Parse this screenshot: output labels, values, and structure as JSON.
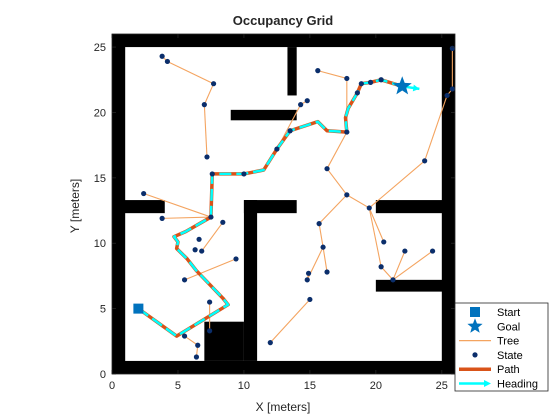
{
  "chart_data": {
    "type": "scatter",
    "title": "Occupancy Grid",
    "xlabel": "X [meters]",
    "ylabel": "Y [meters]",
    "xlim": [
      0,
      26
    ],
    "ylim": [
      0,
      26
    ],
    "xticks": [
      0,
      5,
      10,
      15,
      20,
      25
    ],
    "yticks": [
      0,
      5,
      10,
      15,
      20,
      25
    ],
    "legend_position": "bottom-right",
    "obstacles": [
      [
        0,
        0,
        1,
        26
      ],
      [
        25,
        0,
        26,
        26
      ],
      [
        0,
        0,
        26,
        1
      ],
      [
        0,
        25,
        26,
        26
      ],
      [
        13.3,
        21.3,
        14,
        25
      ],
      [
        9,
        19.4,
        14,
        20.2
      ],
      [
        0,
        12.3,
        4,
        13.3
      ],
      [
        10,
        12.3,
        14,
        13.3
      ],
      [
        10,
        1,
        11,
        13.3
      ],
      [
        7,
        1,
        10,
        4
      ],
      [
        20,
        12.3,
        26,
        13.3
      ],
      [
        20,
        6.3,
        26,
        7.2
      ]
    ],
    "tree_edges": [
      [
        [
          5.5,
          2.9
        ],
        [
          6.5,
          2.2
        ]
      ],
      [
        [
          6.5,
          2.2
        ],
        [
          6.4,
          1.3
        ]
      ],
      [
        [
          7.4,
          5.5
        ],
        [
          7.4,
          3.3
        ]
      ],
      [
        [
          5.5,
          7.2
        ],
        [
          9.4,
          8.8
        ]
      ],
      [
        [
          6.8,
          9.4
        ],
        [
          8.4,
          11.6
        ]
      ],
      [
        [
          2.4,
          13.8
        ],
        [
          7.5,
          12.0
        ]
      ],
      [
        [
          3.8,
          11.9
        ],
        [
          7.5,
          12.0
        ]
      ],
      [
        [
          7.2,
          16.6
        ],
        [
          7.0,
          20.6
        ]
      ],
      [
        [
          7.0,
          20.6
        ],
        [
          7.7,
          22.2
        ]
      ],
      [
        [
          7.7,
          22.2
        ],
        [
          4.2,
          23.9
        ]
      ],
      [
        [
          4.2,
          23.9
        ],
        [
          3.8,
          24.3
        ]
      ],
      [
        [
          15.0,
          5.7
        ],
        [
          12.0,
          2.4
        ]
      ],
      [
        [
          14.8,
          7.2
        ],
        [
          14.9,
          7.7
        ]
      ],
      [
        [
          14.8,
          7.2
        ],
        [
          16.0,
          9.7
        ]
      ],
      [
        [
          16.0,
          9.7
        ],
        [
          16.3,
          7.8
        ]
      ],
      [
        [
          16.0,
          9.7
        ],
        [
          15.7,
          11.5
        ]
      ],
      [
        [
          15.7,
          11.5
        ],
        [
          17.8,
          13.7
        ]
      ],
      [
        [
          17.8,
          13.7
        ],
        [
          19.5,
          12.7
        ]
      ],
      [
        [
          19.5,
          12.7
        ],
        [
          20.4,
          8.2
        ]
      ],
      [
        [
          20.4,
          8.2
        ],
        [
          21.3,
          7.2
        ]
      ],
      [
        [
          21.3,
          7.2
        ],
        [
          22.2,
          9.4
        ]
      ],
      [
        [
          21.3,
          7.2
        ],
        [
          24.3,
          9.4
        ]
      ],
      [
        [
          19.5,
          12.7
        ],
        [
          20.6,
          10.1
        ]
      ],
      [
        [
          19.5,
          12.7
        ],
        [
          23.7,
          16.3
        ]
      ],
      [
        [
          23.7,
          16.3
        ],
        [
          25.4,
          21.3
        ]
      ],
      [
        [
          25.4,
          21.3
        ],
        [
          25.8,
          21.8
        ]
      ],
      [
        [
          25.8,
          21.8
        ],
        [
          25.8,
          24.9
        ]
      ],
      [
        [
          17.8,
          13.7
        ],
        [
          16.3,
          15.7
        ]
      ],
      [
        [
          16.3,
          15.7
        ],
        [
          17.8,
          18.5
        ]
      ],
      [
        [
          17.8,
          18.5
        ],
        [
          17.8,
          22.6
        ]
      ],
      [
        [
          17.8,
          22.6
        ],
        [
          15.6,
          23.2
        ]
      ],
      [
        [
          14.3,
          20.6
        ],
        [
          14.8,
          20.9
        ]
      ],
      [
        [
          14.3,
          20.6
        ],
        [
          12.5,
          17.2
        ]
      ]
    ],
    "states": [
      [
        2.0,
        5.0
      ],
      [
        5.5,
        2.9
      ],
      [
        6.5,
        2.2
      ],
      [
        6.4,
        1.3
      ],
      [
        7.4,
        3.3
      ],
      [
        7.4,
        5.5
      ],
      [
        5.5,
        7.2
      ],
      [
        6.8,
        9.4
      ],
      [
        9.4,
        8.8
      ],
      [
        8.4,
        11.6
      ],
      [
        7.5,
        12.0
      ],
      [
        2.4,
        13.8
      ],
      [
        3.8,
        11.9
      ],
      [
        7.2,
        16.6
      ],
      [
        7.0,
        20.6
      ],
      [
        7.7,
        22.2
      ],
      [
        4.2,
        23.9
      ],
      [
        3.8,
        24.3
      ],
      [
        12.0,
        2.4
      ],
      [
        15.0,
        5.7
      ],
      [
        14.8,
        7.2
      ],
      [
        14.9,
        7.7
      ],
      [
        16.0,
        9.7
      ],
      [
        16.3,
        7.8
      ],
      [
        15.7,
        11.5
      ],
      [
        17.8,
        13.7
      ],
      [
        19.5,
        12.7
      ],
      [
        20.4,
        8.2
      ],
      [
        21.3,
        7.2
      ],
      [
        22.2,
        9.4
      ],
      [
        24.3,
        9.4
      ],
      [
        20.6,
        10.1
      ],
      [
        23.7,
        16.3
      ],
      [
        25.4,
        21.3
      ],
      [
        25.8,
        21.8
      ],
      [
        25.8,
        24.9
      ],
      [
        16.3,
        15.7
      ],
      [
        17.8,
        18.5
      ],
      [
        17.8,
        22.6
      ],
      [
        15.6,
        23.2
      ],
      [
        14.3,
        20.6
      ],
      [
        14.8,
        20.9
      ],
      [
        12.5,
        17.2
      ],
      [
        13.5,
        18.6
      ],
      [
        10.0,
        15.3
      ],
      [
        7.6,
        15.3
      ],
      [
        6.3,
        9.5
      ],
      [
        6.6,
        10.3
      ],
      [
        18.6,
        21.5
      ],
      [
        18.9,
        22.2
      ],
      [
        19.6,
        22.3
      ],
      [
        20.4,
        22.5
      ],
      [
        22.0,
        22.0
      ]
    ],
    "path": [
      [
        2.0,
        5.0
      ],
      [
        4.9,
        2.9
      ],
      [
        8.8,
        5.3
      ],
      [
        8.4,
        5.8
      ],
      [
        6.4,
        7.9
      ],
      [
        5.7,
        8.8
      ],
      [
        4.9,
        9.6
      ],
      [
        5.0,
        10.1
      ],
      [
        4.7,
        10.5
      ],
      [
        5.6,
        10.9
      ],
      [
        7.5,
        12.0
      ],
      [
        7.6,
        15.3
      ],
      [
        10.0,
        15.3
      ],
      [
        11.5,
        15.6
      ],
      [
        12.5,
        17.2
      ],
      [
        13.5,
        18.6
      ],
      [
        15.6,
        19.3
      ],
      [
        16.3,
        18.6
      ],
      [
        17.8,
        18.5
      ],
      [
        17.7,
        19.6
      ],
      [
        17.9,
        20.3
      ],
      [
        18.6,
        21.5
      ],
      [
        18.9,
        22.2
      ],
      [
        19.6,
        22.3
      ],
      [
        20.4,
        22.5
      ],
      [
        22.0,
        22.0
      ]
    ],
    "start": [
      2.0,
      5.0
    ],
    "goal": [
      22.0,
      22.0
    ],
    "goal_heading_end": [
      23.3,
      21.8
    ],
    "legend": [
      "Start",
      "Goal",
      "Tree",
      "State",
      "Path",
      "Heading"
    ],
    "colors": {
      "start": "#0072BD",
      "goal": "#0072BD",
      "tree": "#F4A460",
      "state": "#0B2E6B",
      "path": "#D95319",
      "heading": "#00FFFF",
      "obstacle": "#000000"
    }
  }
}
